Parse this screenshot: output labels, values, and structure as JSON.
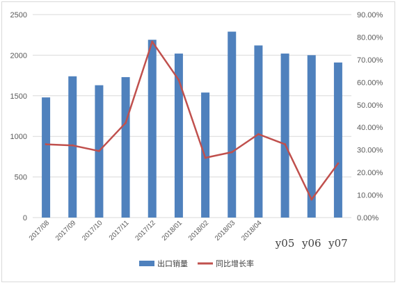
{
  "chart_data": {
    "type": "bar",
    "categories": [
      "2017/08",
      "2017/09",
      "2017/10",
      "2017/11",
      "2017/12",
      "2018/01",
      "2018/02",
      "2018/03",
      "2018/04",
      "y05",
      "y06",
      "y07"
    ],
    "large_category_labels": [
      "y05",
      "y06",
      "y07"
    ],
    "series": [
      {
        "name": "出口销量",
        "type": "bar",
        "axis": "left",
        "color": "#4f81bd",
        "values": [
          1480,
          1740,
          1630,
          1730,
          2190,
          2020,
          1540,
          2290,
          2120,
          2020,
          2000,
          1910
        ]
      },
      {
        "name": "同比增长率",
        "type": "line",
        "axis": "right",
        "color": "#c0504d",
        "values": [
          0.325,
          0.32,
          0.295,
          0.42,
          0.78,
          0.61,
          0.265,
          0.29,
          0.37,
          0.325,
          0.08,
          0.24
        ]
      }
    ],
    "yleft": {
      "min": 0,
      "max": 2500,
      "step": 500,
      "tick_labels": [
        "0",
        "500",
        "1000",
        "1500",
        "2000",
        "2500"
      ]
    },
    "yright": {
      "min": 0,
      "max": 0.9,
      "step": 0.1,
      "tick_labels": [
        "0.00%",
        "10.00%",
        "20.00%",
        "30.00%",
        "40.00%",
        "50.00%",
        "60.00%",
        "70.00%",
        "80.00%",
        "90.00%"
      ]
    },
    "grid": true,
    "legend": {
      "position": "bottom"
    }
  }
}
